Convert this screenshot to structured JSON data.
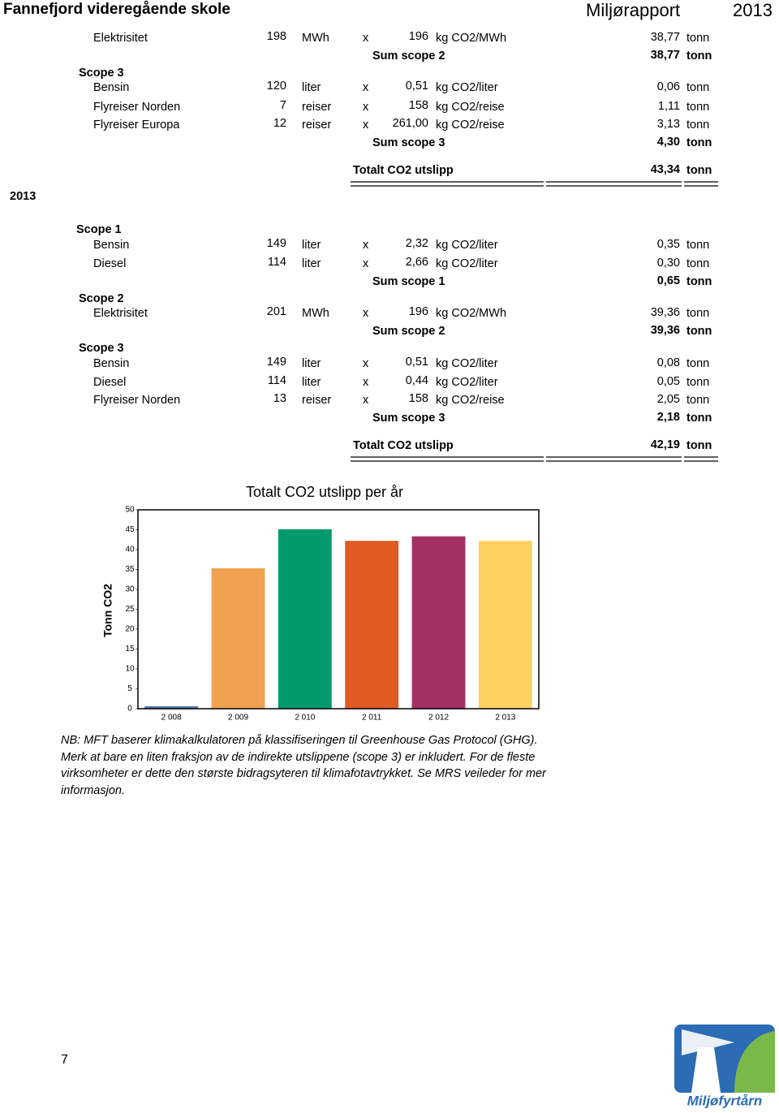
{
  "header": {
    "school": "Fannefjord videregående skole",
    "report": "Miljørapport",
    "year": "2013"
  },
  "sections": [
    {
      "rows": [
        {
          "label": "Elektrisitet",
          "quantity": "198",
          "unit": "MWh",
          "op": "x",
          "factor": "196",
          "factor_unit": "kg CO2/MWh",
          "result": "38,77",
          "result_unit": "tonn"
        },
        {
          "label": "Sum scope 2",
          "result": "38,77",
          "result_unit": "tonn"
        },
        {
          "label": "Scope 3"
        },
        {
          "label": "Bensin",
          "quantity": "120",
          "unit": "liter",
          "op": "x",
          "factor": "0,51",
          "factor_unit": "kg CO2/liter",
          "result": "0,06",
          "result_unit": "tonn"
        },
        {
          "label": "Flyreiser Norden",
          "quantity": "7",
          "unit": "reiser",
          "op": "x",
          "factor": "158",
          "factor_unit": "kg CO2/reise",
          "result": "1,11",
          "result_unit": "tonn"
        },
        {
          "label": "Flyreiser Europa",
          "quantity": "12",
          "unit": "reiser",
          "op": "x",
          "factor": "261,00",
          "factor_unit": "kg CO2/reise",
          "result": "3,13",
          "result_unit": "tonn"
        },
        {
          "label": "Sum scope 3",
          "result": "4,30",
          "result_unit": "tonn"
        },
        {
          "label": "Totalt CO2 utslipp",
          "result": "43,34",
          "result_unit": "tonn"
        }
      ]
    },
    {
      "year": "2013",
      "rows": [
        {
          "label": "Scope 1"
        },
        {
          "label": "Bensin",
          "quantity": "149",
          "unit": "liter",
          "op": "x",
          "factor": "2,32",
          "factor_unit": "kg CO2/liter",
          "result": "0,35",
          "result_unit": "tonn"
        },
        {
          "label": "Diesel",
          "quantity": "114",
          "unit": "liter",
          "op": "x",
          "factor": "2,66",
          "factor_unit": "kg CO2/liter",
          "result": "0,30",
          "result_unit": "tonn"
        },
        {
          "label": "Sum scope 1",
          "result": "0,65",
          "result_unit": "tonn"
        },
        {
          "label": "Scope 2"
        },
        {
          "label": "Elektrisitet",
          "quantity": "201",
          "unit": "MWh",
          "op": "x",
          "factor": "196",
          "factor_unit": "kg CO2/MWh",
          "result": "39,36",
          "result_unit": "tonn"
        },
        {
          "label": "Sum scope 2",
          "result": "39,36",
          "result_unit": "tonn"
        },
        {
          "label": "Scope 3"
        },
        {
          "label": "Bensin",
          "quantity": "149",
          "unit": "liter",
          "op": "x",
          "factor": "0,51",
          "factor_unit": "kg CO2/liter",
          "result": "0,08",
          "result_unit": "tonn"
        },
        {
          "label": "Diesel",
          "quantity": "114",
          "unit": "liter",
          "op": "x",
          "factor": "0,44",
          "factor_unit": "kg CO2/liter",
          "result": "0,05",
          "result_unit": "tonn"
        },
        {
          "label": "Flyreiser Norden",
          "quantity": "13",
          "unit": "reiser",
          "op": "x",
          "factor": "158",
          "factor_unit": "kg CO2/reise",
          "result": "2,05",
          "result_unit": "tonn"
        },
        {
          "label": "Sum scope 3",
          "result": "2,18",
          "result_unit": "tonn"
        },
        {
          "label": "Totalt CO2 utslipp",
          "result": "42,19",
          "result_unit": "tonn"
        }
      ]
    }
  ],
  "chart_data": {
    "type": "bar",
    "title": "Totalt CO2 utslipp per år",
    "y_label": "Tonn CO2",
    "categories": [
      "2 008",
      "2 009",
      "2 010",
      "2 011",
      "2 012",
      "2 013"
    ],
    "values": [
      0.6,
      35.3,
      45.1,
      42.2,
      43.34,
      42.19
    ],
    "colors": [
      "#4a73a8",
      "#f0a152",
      "#009a6e",
      "#e05a22",
      "#a33062",
      "#fdd062"
    ],
    "ylim": [
      0,
      50
    ],
    "yticks": [
      0,
      5,
      10,
      15,
      20,
      25,
      30,
      35,
      40,
      45,
      50
    ]
  },
  "note": [
    "NB: MFT baserer klimakalkulatoren på klassifiseringen til Greenhouse Gas Protocol (GHG).",
    "Merk at bare en liten fraksjon av de indirekte utslippene (scope 3) er inkludert. For de fleste virksomheter er dette den største bidragsyteren til klimafotavtrykket. Se MRS veileder for mer informasjon."
  ],
  "page_number": "7",
  "logo": "Miljøfyrtårn"
}
